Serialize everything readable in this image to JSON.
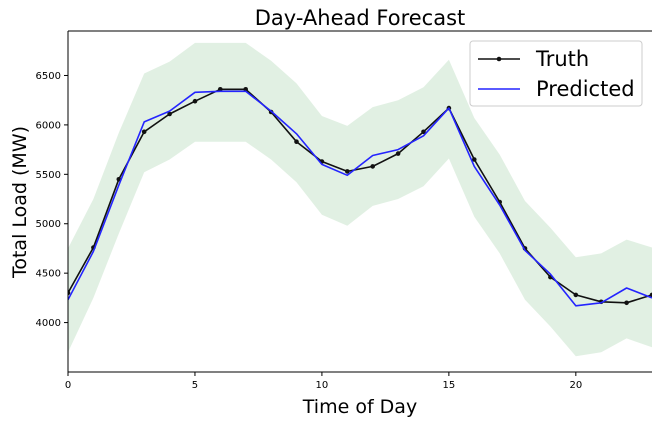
{
  "chart_data": {
    "type": "line",
    "title": "Day-Ahead Forecast",
    "xlabel": "Time of Day",
    "ylabel": "Total Load (MW)",
    "xlim": [
      0,
      23
    ],
    "ylim": [
      3500,
      6950
    ],
    "xticks": [
      0,
      5,
      10,
      15,
      20
    ],
    "yticks": [
      4000,
      4500,
      5000,
      5500,
      6000,
      6500
    ],
    "grid": false,
    "legend_position": "top-right",
    "x": [
      0,
      1,
      2,
      3,
      4,
      5,
      6,
      7,
      8,
      9,
      10,
      11,
      12,
      13,
      14,
      15,
      16,
      17,
      18,
      19,
      20,
      21,
      22,
      23
    ],
    "band": {
      "color": "#d7ebd9",
      "lower": [
        3700,
        4250,
        4900,
        5520,
        5650,
        5830,
        5830,
        5830,
        5650,
        5420,
        5090,
        4980,
        5180,
        5250,
        5380,
        5660,
        5070,
        4700,
        4230,
        3960,
        3660,
        3700,
        3840,
        3750
      ],
      "upper": [
        4750,
        5250,
        5920,
        6520,
        6640,
        6830,
        6830,
        6830,
        6650,
        6420,
        6090,
        5990,
        6180,
        6250,
        6380,
        6660,
        6070,
        5700,
        5230,
        4960,
        4660,
        4700,
        4840,
        4760
      ]
    },
    "series": [
      {
        "name": "Truth",
        "color": "#111111",
        "marker": "dot",
        "values": [
          4300,
          4760,
          5450,
          5930,
          6110,
          6240,
          6360,
          6360,
          6130,
          5830,
          5630,
          5530,
          5580,
          5710,
          5930,
          6170,
          5650,
          5220,
          4750,
          4460,
          4280,
          4210,
          4200,
          4280
        ]
      },
      {
        "name": "Predicted",
        "color": "#2424ff",
        "marker": "none",
        "values": [
          4230,
          4720,
          5390,
          6030,
          6140,
          6330,
          6340,
          6340,
          6140,
          5910,
          5600,
          5490,
          5690,
          5750,
          5890,
          6170,
          5580,
          5190,
          4730,
          4490,
          4170,
          4200,
          4350,
          4250
        ]
      }
    ]
  }
}
